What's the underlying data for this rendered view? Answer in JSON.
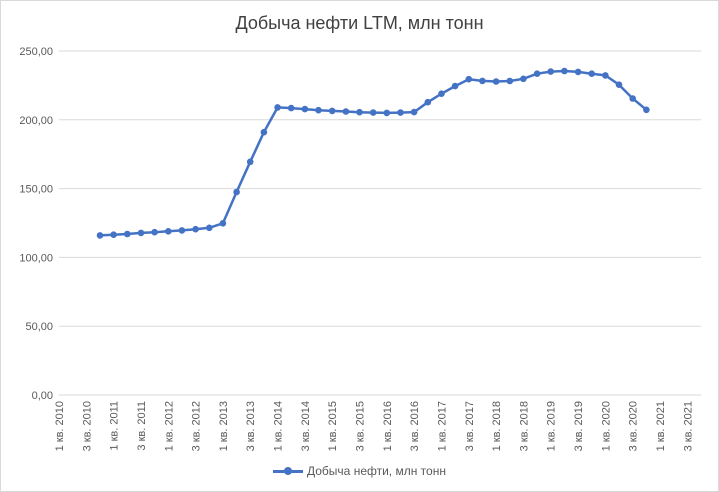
{
  "chart_data": {
    "type": "line",
    "title": "Добыча нефти LTM, млн тонн",
    "xlabel": "",
    "ylabel": "",
    "ylim": [
      0,
      250
    ],
    "y_ticks": [
      "0,00",
      "50,00",
      "100,00",
      "150,00",
      "200,00",
      "250,00"
    ],
    "y_tick_values": [
      0,
      50,
      100,
      150,
      200,
      250
    ],
    "grid": true,
    "legend_position": "bottom",
    "categories": [
      "1 кв. 2010",
      "2 кв. 2010",
      "3 кв. 2010",
      "4 кв. 2010",
      "1 кв. 2011",
      "2 кв. 2011",
      "3 кв. 2011",
      "4 кв. 2011",
      "1 кв. 2012",
      "2 кв. 2012",
      "3 кв. 2012",
      "4 кв. 2012",
      "1 кв. 2013",
      "2 кв. 2013",
      "3 кв. 2013",
      "4 кв. 2013",
      "1 кв. 2014",
      "2 кв. 2014",
      "3 кв. 2014",
      "4 кв. 2014",
      "1 кв. 2015",
      "2 кв. 2015",
      "3 кв. 2015",
      "4 кв. 2015",
      "1 кв. 2016",
      "2 кв. 2016",
      "3 кв. 2016",
      "4 кв. 2016",
      "1 кв. 2017",
      "2 кв. 2017",
      "3 кв. 2017",
      "4 кв. 2017",
      "1 кв. 2018",
      "2 кв. 2018",
      "3 кв. 2018",
      "4 кв. 2018",
      "1 кв. 2019",
      "2 кв. 2019",
      "3 кв. 2019",
      "4 кв. 2019",
      "1 кв. 2020",
      "2 кв. 2020",
      "3 кв. 2020",
      "4 кв. 2020",
      "1 кв. 2021",
      "2 кв. 2021",
      "3 кв. 2021",
      "4 кв. 2021"
    ],
    "x_tick_labels_shown": [
      "1 кв. 2010",
      "3 кв. 2010",
      "1 кв. 2011",
      "3 кв. 2011",
      "1 кв. 2012",
      "3 кв. 2012",
      "1 кв. 2013",
      "3 кв. 2013",
      "1 кв. 2014",
      "3 кв. 2014",
      "1 кв. 2015",
      "3 кв. 2015",
      "1 кв. 2016",
      "3 кв. 2016",
      "1 кв. 2017",
      "3 кв. 2017",
      "1 кв. 2018",
      "3 кв. 2018",
      "1 кв. 2019",
      "3 кв. 2019",
      "1 кв. 2020",
      "3 кв. 2020",
      "1 кв. 2021",
      "3 кв. 2021"
    ],
    "series": [
      {
        "name": "Добыча нефти, млн тонн",
        "color": "#4472C4",
        "values": [
          null,
          null,
          null,
          116.0,
          116.5,
          117.0,
          117.8,
          118.3,
          119.0,
          119.6,
          120.5,
          121.5,
          124.8,
          147.5,
          169.5,
          191.0,
          209.0,
          208.5,
          207.8,
          207.0,
          206.5,
          206.0,
          205.5,
          205.2,
          205.0,
          205.2,
          205.6,
          212.8,
          219.0,
          224.5,
          229.5,
          228.3,
          227.8,
          228.2,
          229.8,
          233.5,
          235.0,
          235.5,
          234.8,
          233.5,
          232.3,
          225.5,
          215.5,
          207.3,
          null,
          null,
          null,
          null
        ]
      }
    ]
  }
}
